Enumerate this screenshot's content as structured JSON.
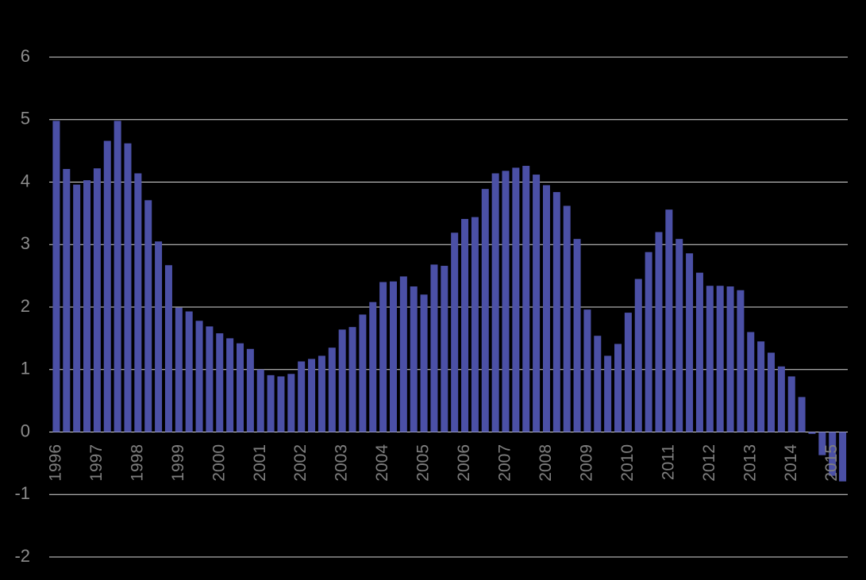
{
  "chart_data": {
    "type": "bar",
    "categories": [
      "1996",
      null,
      null,
      null,
      "1997",
      null,
      null,
      null,
      "1998",
      null,
      null,
      null,
      "1999",
      null,
      null,
      null,
      "2000",
      null,
      null,
      null,
      "2001",
      null,
      null,
      null,
      "2002",
      null,
      null,
      null,
      "2003",
      null,
      null,
      null,
      "2004",
      null,
      null,
      null,
      "2005",
      null,
      null,
      null,
      "2006",
      null,
      null,
      null,
      "2007",
      null,
      null,
      null,
      "2008",
      null,
      null,
      null,
      "2009",
      null,
      null,
      null,
      "2010",
      null,
      null,
      null,
      "2011",
      null,
      null,
      null,
      "2012",
      null,
      null,
      null,
      "2013",
      null,
      null,
      null,
      "2014",
      null,
      null,
      null,
      "2015",
      null
    ],
    "values": [
      4.98,
      4.21,
      3.96,
      4.03,
      4.22,
      4.66,
      4.98,
      4.62,
      4.14,
      3.71,
      3.05,
      2.67,
      1.99,
      1.93,
      1.78,
      1.69,
      1.58,
      1.5,
      1.42,
      1.33,
      1.0,
      0.91,
      0.89,
      0.93,
      1.13,
      1.17,
      1.22,
      1.35,
      1.64,
      1.68,
      1.88,
      2.08,
      2.4,
      2.41,
      2.49,
      2.33,
      2.2,
      2.68,
      2.66,
      3.19,
      3.41,
      3.44,
      3.89,
      4.14,
      4.18,
      4.23,
      4.26,
      4.12,
      3.95,
      3.84,
      3.62,
      3.09,
      1.96,
      1.54,
      1.22,
      1.41,
      1.91,
      2.45,
      2.88,
      3.2,
      3.56,
      3.09,
      2.86,
      2.55,
      2.34,
      2.34,
      2.33,
      2.27,
      1.6,
      1.45,
      1.27,
      1.05,
      0.89,
      0.56,
      -0.03,
      -0.37,
      -0.7,
      -0.79
    ],
    "color": "#4b50a6",
    "ylim": [
      -2,
      6
    ],
    "yticks": [
      -2,
      -1,
      0,
      1,
      2,
      3,
      4,
      5,
      6
    ],
    "grid": true
  }
}
